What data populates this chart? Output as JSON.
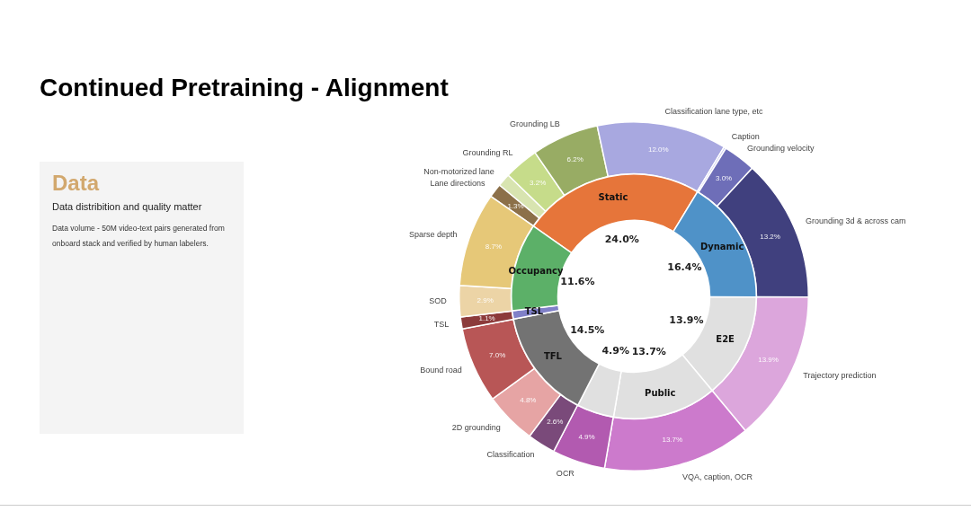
{
  "chart_data": [
    {
      "type": "donut",
      "title": "Continued Pretraining - Alignment",
      "legend": false,
      "annotations": [
        "Data",
        "Data distribition and quality matter",
        "Data volume - 50M video-text pairs generated from onboard stack and verified by human labelers."
      ],
      "categories": [
        "Lane directions",
        "Non-motorized lane",
        "Grounding RL",
        "Grounding LB",
        "Classification lane type, etc",
        "Caption",
        "Grounding velocity",
        "Grounding 3d & across cam",
        "Trajectory prediction",
        "VQA, caption, OCR",
        "OCR",
        "Classification",
        "2D grounding",
        "Bound road",
        "TSL",
        "SOD",
        "Sparse depth"
      ],
      "values": [
        1.3,
        1.2,
        3.2,
        6.2,
        12.0,
        0.2,
        3.0,
        13.2,
        13.9,
        13.7,
        4.9,
        2.6,
        4.8,
        7.0,
        1.1,
        2.9,
        8.7
      ],
      "colors": [
        "#8c7049",
        "#d8e4b0",
        "#c6dc8a",
        "#98ac64",
        "#a8a8e0",
        "#c4c4ee",
        "#6e6eb8",
        "#40407e",
        "#dca6dc",
        "#cc7acc",
        "#b25ab0",
        "#7a4a7a",
        "#e6a4a4",
        "#b85656",
        "#8c3a3a",
        "#ecd4a6",
        "#e6c878"
      ],
      "value_labels": [
        "1.3%",
        null,
        "3.2%",
        "6.2%",
        "12.0%",
        null,
        "3.0%",
        "13.2%",
        "13.9%",
        "13.7%",
        "4.9%",
        "2.6%",
        "4.8%",
        "7.0%",
        "1.1%",
        "2.9%",
        "8.7%"
      ]
    },
    {
      "type": "donut",
      "legend": false,
      "categories": [
        "Static",
        "Dynamic",
        "E2E",
        "Public",
        null,
        "TFL",
        "TSL",
        "Occupancy"
      ],
      "values": [
        24.0,
        16.4,
        13.9,
        13.7,
        4.9,
        14.5,
        1.1,
        11.6
      ],
      "colors": [
        "#e6753a",
        "#4f92c8",
        "#e0e0e0",
        "#e0e0e0",
        "#e0e0e0",
        "#737373",
        "#8080c8",
        "#5cb068"
      ],
      "value_labels": [
        "24.0%",
        "16.4%",
        "13.9%",
        "13.7%",
        "4.9%",
        "14.5%",
        null,
        "11.6%"
      ]
    }
  ]
}
